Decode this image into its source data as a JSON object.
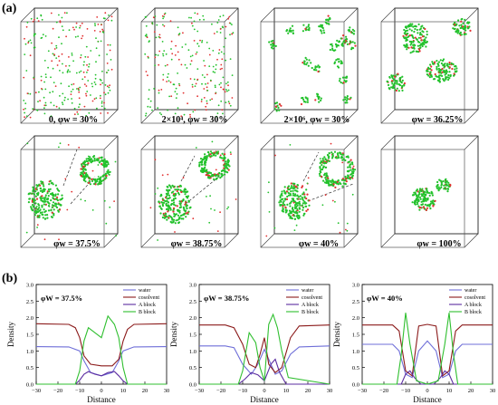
{
  "figure": {
    "panel_a_label": "(a)",
    "panel_b_label": "(b)",
    "snapshot_captions": [
      "0, φw = 30%",
      "2×10⁴, φw = 30%",
      "2×10⁶, φw = 30%",
      "φw = 36.25%",
      "φw = 37.5%",
      "φw = 38.75%",
      "φw = 40%",
      "φw = 100%"
    ],
    "colors": {
      "water": "#6f6fd8",
      "cosolvent": "#8b1a1a",
      "A_block": "#5b2ca0",
      "B_block": "#2fbf2f",
      "grain_green": "#22c12b",
      "grain_red": "#e23030"
    }
  },
  "chart_data": [
    {
      "type": "line",
      "title": "φW = 37.5%",
      "xlabel": "Distance",
      "ylabel": "Density",
      "xlim": [
        -30,
        30
      ],
      "ylim": [
        0.0,
        3.0
      ],
      "xticks": [
        "−30",
        "−20",
        "−10",
        "0",
        "10",
        "20",
        "30"
      ],
      "yticks": [
        "0.0",
        "0.5",
        "1.0",
        "1.5",
        "2.0",
        "2.5",
        "3.0"
      ],
      "legend": [
        "water",
        "cosolvent",
        "A block",
        "B block"
      ],
      "series": [
        {
          "name": "water",
          "color": "#6f6fd8",
          "x": [
            -30,
            -15,
            -10,
            -8,
            -5,
            0,
            5,
            8,
            10,
            15,
            30
          ],
          "y": [
            1.13,
            1.12,
            1.0,
            0.7,
            0.35,
            0.25,
            0.35,
            0.7,
            1.0,
            1.12,
            1.13
          ]
        },
        {
          "name": "cosolvent",
          "color": "#8b1a1a",
          "x": [
            -30,
            -15,
            -12,
            -10,
            -8,
            -5,
            0,
            5,
            8,
            10,
            12,
            15,
            30
          ],
          "y": [
            1.82,
            1.8,
            1.7,
            1.4,
            0.85,
            0.6,
            0.55,
            0.55,
            0.75,
            1.3,
            1.65,
            1.8,
            1.82
          ]
        },
        {
          "name": "A block",
          "color": "#5b2ca0",
          "x": [
            -30,
            -12,
            -10,
            -8,
            -6,
            -3,
            0,
            3,
            6,
            8,
            10,
            12,
            30
          ],
          "y": [
            0.0,
            0.0,
            0.12,
            0.3,
            0.38,
            0.3,
            0.25,
            0.35,
            0.38,
            0.25,
            0.1,
            0.0,
            0.0
          ]
        },
        {
          "name": "B block",
          "color": "#2fbf2f",
          "x": [
            -30,
            -12,
            -10,
            -8,
            -6,
            -3,
            0,
            3,
            6,
            8,
            10,
            12,
            30
          ],
          "y": [
            0.0,
            0.0,
            0.4,
            1.3,
            1.7,
            1.55,
            1.4,
            2.05,
            1.8,
            1.4,
            0.5,
            0.0,
            0.0
          ]
        }
      ]
    },
    {
      "type": "line",
      "title": "φW = 38.75%",
      "xlabel": "Distance",
      "ylabel": "Density",
      "xlim": [
        -30,
        30
      ],
      "ylim": [
        0.0,
        3.0
      ],
      "xticks": [
        "−30",
        "−20",
        "−10",
        "0",
        "10",
        "20",
        "30"
      ],
      "yticks": [
        "0.0",
        "0.5",
        "1.0",
        "1.5",
        "2.0",
        "2.5",
        "3.0"
      ],
      "legend": [
        "water",
        "cosolvent",
        "A block",
        "B block"
      ],
      "series": [
        {
          "name": "water",
          "color": "#6f6fd8",
          "x": [
            -30,
            -18,
            -14,
            -10,
            -6,
            -3,
            0,
            3,
            5,
            8,
            12,
            16,
            30
          ],
          "y": [
            1.15,
            1.15,
            1.1,
            0.6,
            0.3,
            0.6,
            1.05,
            0.6,
            0.3,
            0.4,
            0.9,
            1.12,
            1.15
          ]
        },
        {
          "name": "cosolvent",
          "color": "#8b1a1a",
          "x": [
            -30,
            -18,
            -14,
            -10,
            -7,
            -4,
            -2,
            0,
            2,
            5,
            8,
            12,
            16,
            30
          ],
          "y": [
            1.78,
            1.78,
            1.7,
            1.2,
            0.6,
            0.5,
            0.9,
            1.4,
            0.6,
            0.35,
            0.5,
            1.4,
            1.75,
            1.78
          ]
        },
        {
          "name": "A block",
          "color": "#5b2ca0",
          "x": [
            -30,
            -12,
            -9,
            -6,
            -3,
            0,
            3,
            5,
            7,
            10,
            30
          ],
          "y": [
            0.0,
            0.0,
            0.15,
            0.35,
            0.28,
            0.1,
            0.6,
            0.75,
            0.35,
            0.0,
            0.0
          ]
        },
        {
          "name": "B block",
          "color": "#2fbf2f",
          "x": [
            -30,
            -12,
            -10,
            -7,
            -4,
            -2,
            0,
            2,
            4,
            6,
            8,
            11,
            30
          ],
          "y": [
            0.0,
            0.0,
            0.4,
            1.55,
            1.25,
            0.5,
            0.1,
            1.8,
            2.1,
            1.7,
            1.0,
            0.2,
            0.0
          ]
        }
      ]
    },
    {
      "type": "line",
      "title": "φW = 40%",
      "xlabel": "Distance",
      "ylabel": "Density",
      "xlim": [
        -30,
        30
      ],
      "ylim": [
        0.0,
        3.0
      ],
      "xticks": [
        "−30",
        "−20",
        "−10",
        "0",
        "10",
        "20",
        "30"
      ],
      "yticks": [
        "0.0",
        "0.5",
        "1.0",
        "1.5",
        "2.0",
        "2.5",
        "3.0"
      ],
      "legend": [
        "water",
        "cosolvent",
        "A block",
        "B block"
      ],
      "series": [
        {
          "name": "water",
          "color": "#6f6fd8",
          "x": [
            -30,
            -16,
            -13,
            -10,
            -7,
            -4,
            0,
            4,
            7,
            10,
            13,
            16,
            30
          ],
          "y": [
            1.2,
            1.2,
            1.0,
            0.3,
            0.2,
            1.0,
            1.3,
            1.0,
            0.2,
            0.3,
            1.0,
            1.2,
            1.2
          ]
        },
        {
          "name": "cosolvent",
          "color": "#8b1a1a",
          "x": [
            -30,
            -16,
            -13,
            -10,
            -7,
            -4,
            0,
            4,
            7,
            10,
            13,
            16,
            30
          ],
          "y": [
            1.78,
            1.78,
            1.6,
            0.4,
            0.25,
            1.75,
            1.8,
            1.75,
            0.25,
            0.4,
            1.6,
            1.78,
            1.78
          ]
        },
        {
          "name": "A block",
          "color": "#5b2ca0",
          "x": [
            -30,
            -12,
            -10,
            -8,
            -6,
            -3,
            0,
            3,
            6,
            8,
            10,
            12,
            30
          ],
          "y": [
            0.0,
            0.0,
            0.3,
            0.4,
            0.2,
            0.0,
            0.0,
            0.0,
            0.2,
            0.4,
            0.3,
            0.0,
            0.0
          ]
        },
        {
          "name": "B block",
          "color": "#2fbf2f",
          "x": [
            -30,
            -14,
            -12,
            -10,
            -8,
            -5,
            0,
            5,
            8,
            10,
            12,
            14,
            30
          ],
          "y": [
            0.0,
            0.0,
            0.9,
            2.15,
            1.2,
            0.1,
            0.0,
            0.1,
            1.2,
            2.15,
            0.9,
            0.0,
            0.0
          ]
        }
      ]
    }
  ]
}
